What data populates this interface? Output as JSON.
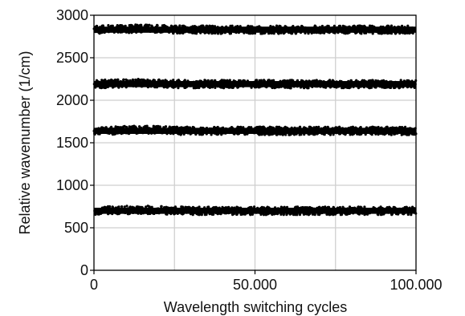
{
  "chart_data": {
    "type": "scatter",
    "title": "",
    "xlabel": "Wavelength switching cycles",
    "ylabel": "Relative wavenumber (1/cm)",
    "xlim": [
      0,
      100000
    ],
    "ylim": [
      0,
      3000
    ],
    "x_ticks": [
      0,
      50000,
      100000
    ],
    "x_tick_labels": [
      "0",
      "50.000",
      "100.000"
    ],
    "x_gridlines": [
      0,
      25000,
      50000,
      75000,
      100000
    ],
    "y_ticks": [
      0,
      500,
      1000,
      1500,
      2000,
      2500,
      3000
    ],
    "y_tick_labels": [
      "0",
      "500",
      "1000",
      "1500",
      "2000",
      "2500",
      "3000"
    ],
    "grid": true,
    "marker_color": "#000000",
    "band_half_spread": 45,
    "series": [
      {
        "y_center": 700
      },
      {
        "y_center": 1640
      },
      {
        "y_center": 2190
      },
      {
        "y_center": 2830
      }
    ]
  }
}
